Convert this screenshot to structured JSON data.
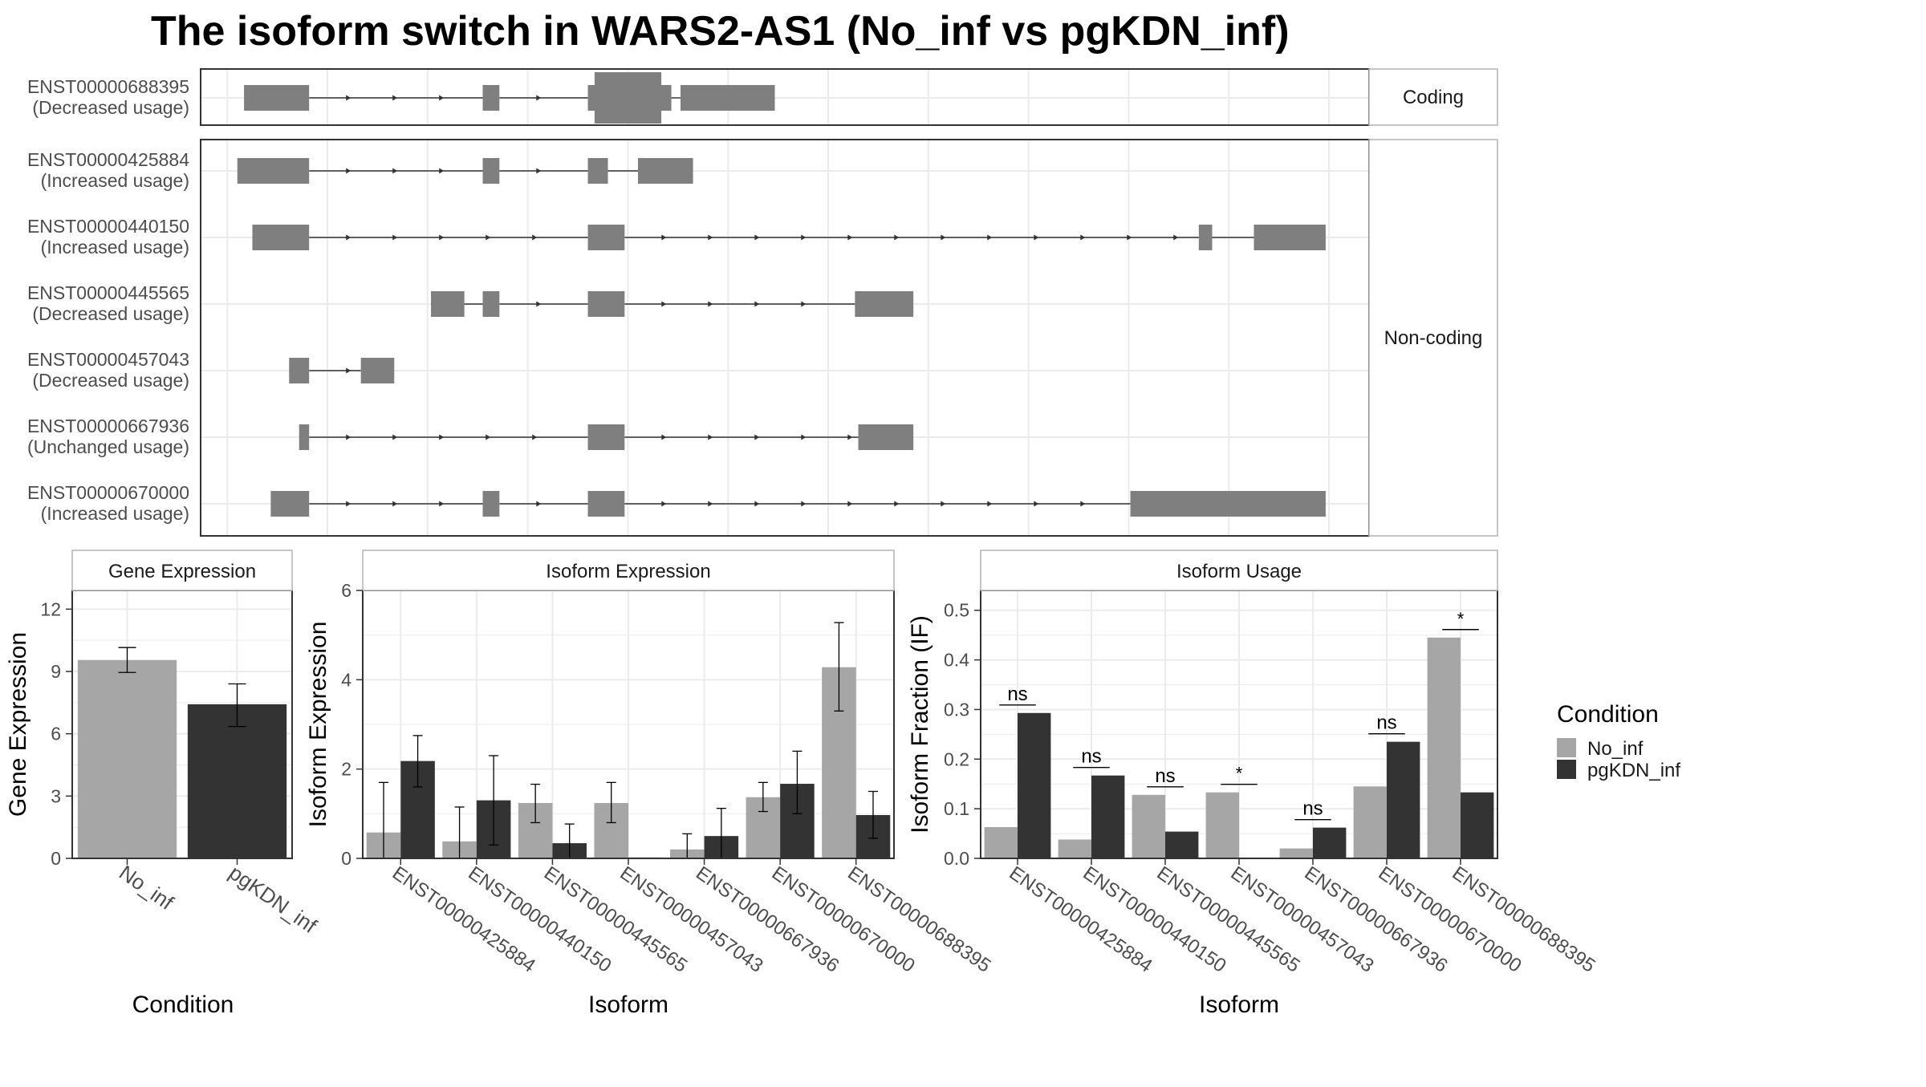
{
  "title": "The isoform switch in WARS2-AS1 (No_inf vs pgKDN_inf)",
  "colors": {
    "no_inf": "#a6a6a6",
    "pgkdn_inf": "#333333",
    "exon": "#7f7f7f",
    "grid": "#ebebeb",
    "panel_border": "#333333",
    "strip_border": "#b3b3b3"
  },
  "chart_data": [
    {
      "type": "gene-structure",
      "panels": [
        {
          "label": "Coding",
          "tracks": [
            {
              "isoform": "ENST00000688395",
              "usage": "(Decreased usage)",
              "exons": [
                [
                  200,
                  278
                ],
                [
                  486,
                  506
                ],
                [
                  612,
                  688
                ],
                [
                  692,
                  712
                ],
                [
                  723,
                  836
                ]
              ],
              "tall": [
                [
                  620,
                  700
                ]
              ]
            }
          ]
        },
        {
          "label": "Non-coding",
          "tracks": [
            {
              "isoform": "ENST00000425884",
              "usage": "(Increased usage)",
              "exons": [
                [
                  192,
                  278
                ],
                [
                  486,
                  506
                ],
                [
                  612,
                  636
                ],
                [
                  672,
                  738
                ]
              ]
            },
            {
              "isoform": "ENST00000440150",
              "usage": "(Increased usage)",
              "exons": [
                [
                  210,
                  278
                ],
                [
                  612,
                  656
                ],
                [
                  1344,
                  1360
                ],
                [
                  1410,
                  1496
                ]
              ]
            },
            {
              "isoform": "ENST00000445565",
              "usage": "(Decreased usage)",
              "exons": [
                [
                  424,
                  464
                ],
                [
                  486,
                  506
                ],
                [
                  612,
                  656
                ],
                [
                  932,
                  1002
                ]
              ]
            },
            {
              "isoform": "ENST00000457043",
              "usage": "(Decreased usage)",
              "exons": [
                [
                  254,
                  278
                ],
                [
                  340,
                  380
                ]
              ]
            },
            {
              "isoform": "ENST00000667936",
              "usage": "(Unchanged usage)",
              "exons": [
                [
                  266,
                  278
                ],
                [
                  612,
                  656
                ],
                [
                  936,
                  1002
                ]
              ]
            },
            {
              "isoform": "ENST00000670000",
              "usage": "(Increased usage)",
              "exons": [
                [
                  232,
                  278
                ],
                [
                  486,
                  506
                ],
                [
                  612,
                  656
                ],
                [
                  1262,
                  1496
                ]
              ]
            }
          ]
        }
      ]
    },
    {
      "type": "bar",
      "strip": "Gene Expression",
      "xlabel": "Condition",
      "ylabel": "Gene Expression",
      "ylim": [
        0,
        12.9
      ],
      "yticks": [
        "0",
        "3",
        "6",
        "9",
        "12"
      ],
      "categories": [
        "No_inf",
        "pgKDN_inf"
      ],
      "values": [
        9.55,
        7.42
      ],
      "errors": [
        [
          8.95,
          10.15
        ],
        [
          6.35,
          8.4
        ]
      ]
    },
    {
      "type": "bar",
      "strip": "Isoform Expression",
      "xlabel": "Isoform",
      "ylabel": "Isoform Expression",
      "ylim": [
        0,
        6.0
      ],
      "yticks": [
        "0",
        "2",
        "4",
        "6"
      ],
      "categories": [
        "ENST00000425884",
        "ENST00000440150",
        "ENST00000445565",
        "ENST00000457043",
        "ENST00000667936",
        "ENST00000670000",
        "ENST00000688395"
      ],
      "series": [
        {
          "name": "No_inf",
          "values": [
            0.58,
            0.38,
            1.24,
            1.24,
            0.2,
            1.37,
            4.28
          ],
          "errors": [
            [
              0,
              1.7
            ],
            [
              0,
              1.15
            ],
            [
              0.8,
              1.66
            ],
            [
              0.8,
              1.7
            ],
            [
              0,
              0.55
            ],
            [
              1.05,
              1.7
            ],
            [
              3.3,
              5.28
            ]
          ]
        },
        {
          "name": "pgKDN_inf",
          "values": [
            2.18,
            1.3,
            0.34,
            0.02,
            0.5,
            1.67,
            0.97
          ],
          "errors": [
            [
              1.6,
              2.75
            ],
            [
              0.3,
              2.3
            ],
            [
              0,
              0.77
            ],
            null,
            [
              0,
              1.12
            ],
            [
              1.0,
              2.4
            ],
            [
              0.45,
              1.5
            ]
          ]
        }
      ]
    },
    {
      "type": "bar",
      "strip": "Isoform Usage",
      "xlabel": "Isoform",
      "ylabel": "Isoform Fraction (IF)",
      "ylim": [
        0,
        0.54
      ],
      "yticks": [
        "0.0",
        "0.1",
        "0.2",
        "0.3",
        "0.4",
        "0.5"
      ],
      "categories": [
        "ENST00000425884",
        "ENST00000440150",
        "ENST00000445565",
        "ENST00000457043",
        "ENST00000667936",
        "ENST00000670000",
        "ENST00000688395"
      ],
      "series": [
        {
          "name": "No_inf",
          "values": [
            0.063,
            0.038,
            0.128,
            0.133,
            0.02,
            0.145,
            0.445
          ]
        },
        {
          "name": "pgKDN_inf",
          "values": [
            0.293,
            0.167,
            0.054,
            0.0,
            0.062,
            0.235,
            0.133
          ]
        }
      ],
      "significance": [
        "ns",
        "ns",
        "ns",
        "*",
        "ns",
        "ns",
        "*"
      ]
    }
  ],
  "legend": {
    "title": "Condition",
    "items": [
      "No_inf",
      "pgKDN_inf"
    ]
  }
}
